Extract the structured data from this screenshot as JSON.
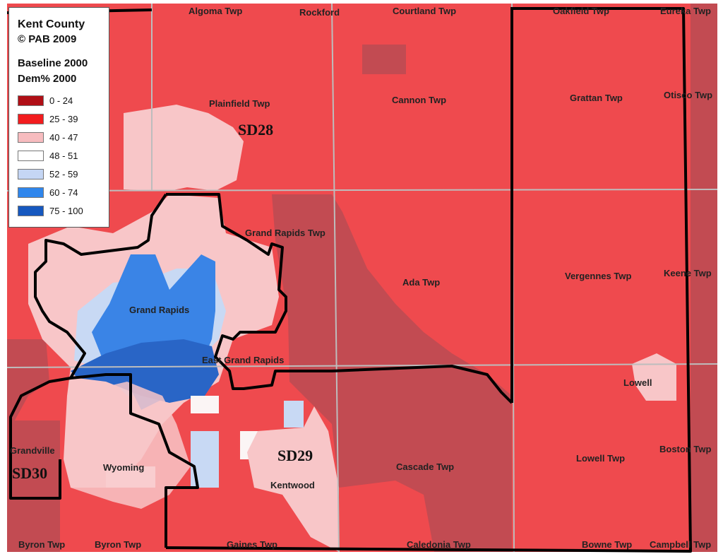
{
  "legend": {
    "title": "Kent County",
    "credit": "© PAB 2009",
    "subtitle": "Baseline 2000",
    "field": "Dem% 2000",
    "classes": [
      {
        "label": "0 - 24",
        "color": "#b00f16"
      },
      {
        "label": "25 - 39",
        "color": "#f21c1e"
      },
      {
        "label": "40 - 47",
        "color": "#f7bcbf"
      },
      {
        "label": "48 - 51",
        "color": "#ffffff"
      },
      {
        "label": "52 - 59",
        "color": "#c5d6f4"
      },
      {
        "label": "60 - 74",
        "color": "#2f86ec"
      },
      {
        "label": "75 - 100",
        "color": "#1658bf"
      }
    ]
  },
  "map_colors": {
    "base": "#ef4a4e",
    "dark": "#c24b52",
    "pink": "#f8c6c8",
    "white": "#fbf5f5",
    "lightblue": "#c8d9f4",
    "blue": "#3a84e6",
    "darkblue": "#2965c6",
    "grid": "#bdbdbd",
    "district": "#000000"
  },
  "townships": [
    {
      "name": "Algoma Twp"
    },
    {
      "name": "Rockford"
    },
    {
      "name": "Courtland Twp"
    },
    {
      "name": "Oakfield Twp"
    },
    {
      "name": "Eureka Twp"
    },
    {
      "name": "Plainfield Twp"
    },
    {
      "name": "Cannon Twp"
    },
    {
      "name": "Grattan Twp"
    },
    {
      "name": "Otisco Twp"
    },
    {
      "name": "Grand Rapids Twp"
    },
    {
      "name": "Ada Twp"
    },
    {
      "name": "Vergennes Twp"
    },
    {
      "name": "Keene Twp"
    },
    {
      "name": "Grand Rapids"
    },
    {
      "name": "East Grand Rapids"
    },
    {
      "name": "Lowell"
    },
    {
      "name": "Grandville"
    },
    {
      "name": "Wyoming"
    },
    {
      "name": "Kentwood"
    },
    {
      "name": "Cascade Twp"
    },
    {
      "name": "Lowell Twp"
    },
    {
      "name": "Boston Twp"
    },
    {
      "name": "Byron Twp"
    },
    {
      "name": "Byron Twp"
    },
    {
      "name": "Gaines Twp"
    },
    {
      "name": "Caledonia Twp"
    },
    {
      "name": "Bowne Twp"
    },
    {
      "name": "Campbell Twp"
    }
  ],
  "districts": [
    {
      "name": "SD28"
    },
    {
      "name": "SD29"
    },
    {
      "name": "SD30"
    }
  ]
}
